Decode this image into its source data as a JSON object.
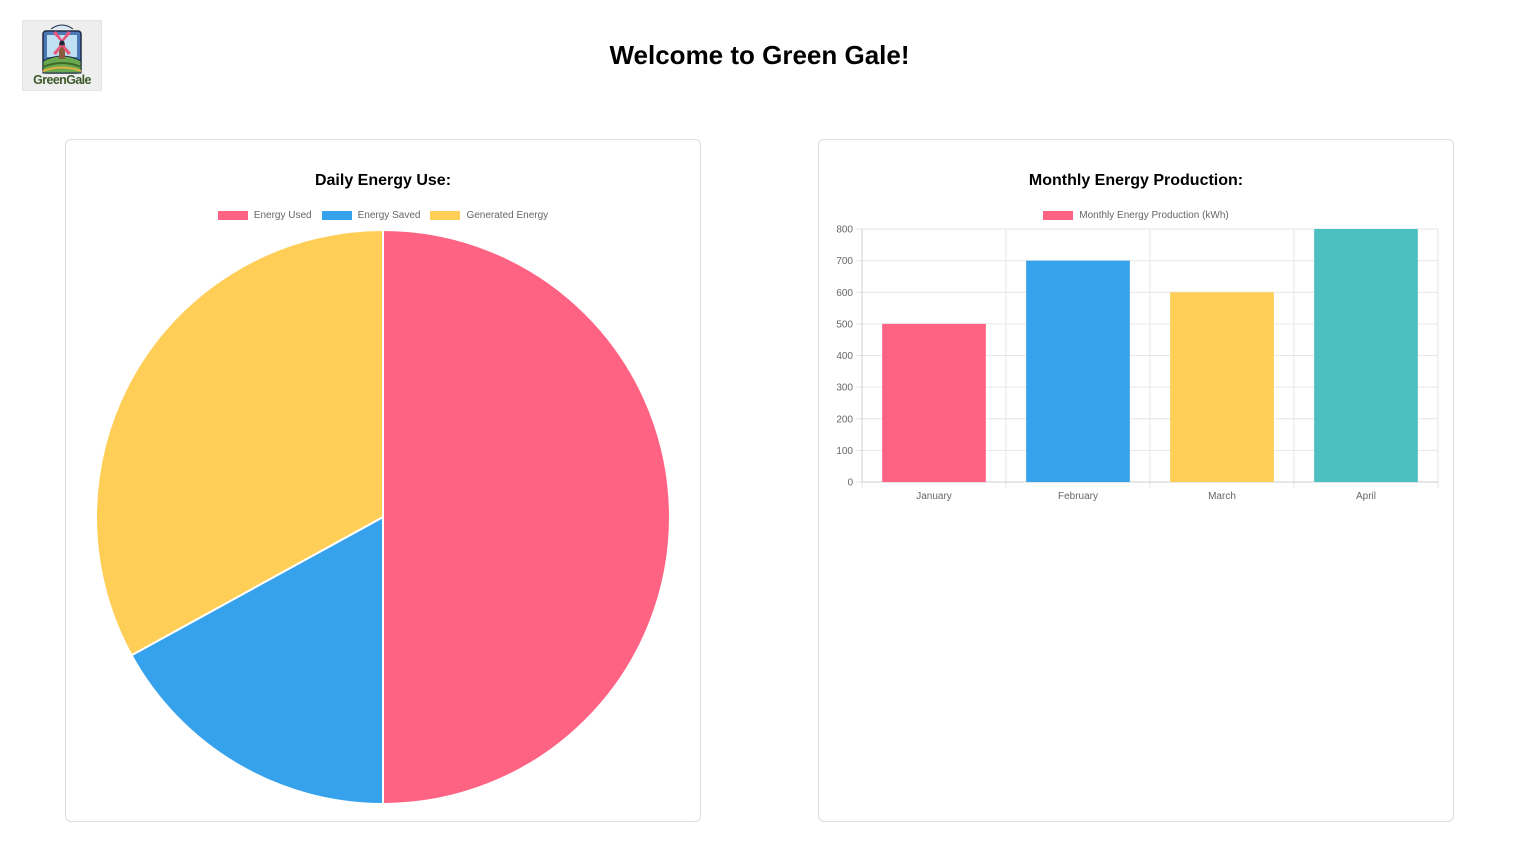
{
  "header": {
    "logo_text": "GreenGale",
    "title": "Welcome to Green Gale!"
  },
  "colors": {
    "pink": "#ff6384",
    "blue": "#36a2eb",
    "yellow": "#ffce56",
    "teal": "#4bc0c0"
  },
  "chart_data": [
    {
      "type": "pie",
      "title": "Daily Energy Use:",
      "legend_position": "top",
      "labels": [
        "Energy Used",
        "Energy Saved",
        "Generated Energy"
      ],
      "values": [
        50,
        17,
        33
      ],
      "colors": [
        "#ff6384",
        "#36a2eb",
        "#ffce56"
      ]
    },
    {
      "type": "bar",
      "title": "Monthly Energy Production:",
      "legend_position": "top",
      "categories": [
        "January",
        "February",
        "March",
        "April"
      ],
      "series": [
        {
          "name": "Monthly Energy Production (kWh)",
          "values": [
            500,
            700,
            600,
            800
          ]
        }
      ],
      "colors": [
        "#ff6384",
        "#36a2eb",
        "#ffce56",
        "#4bc0c0"
      ],
      "ylim": [
        0,
        800
      ],
      "yticks": [
        "0",
        "100",
        "200",
        "300",
        "400",
        "500",
        "600",
        "700",
        "800"
      ],
      "grid": true
    }
  ]
}
